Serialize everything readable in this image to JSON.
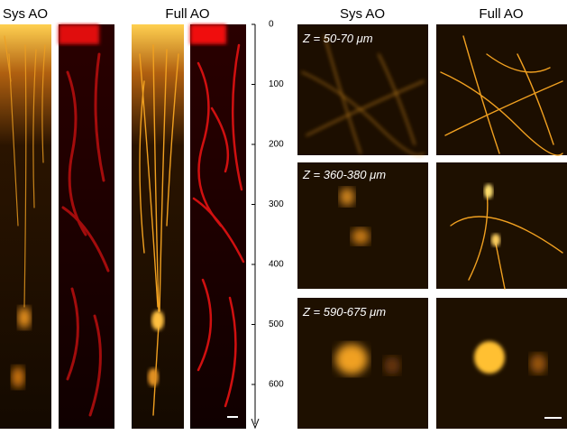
{
  "left": {
    "headers": [
      "Sys AO",
      "Full AO"
    ]
  },
  "depth_axis": {
    "ticks": [
      0,
      100,
      200,
      300,
      400,
      500,
      600
    ]
  },
  "right": {
    "headers": [
      "Sys AO",
      "Full AO"
    ],
    "rows": [
      "Z = 50-70 μm",
      "Z = 360-380 μm",
      "Z = 590-675 μm"
    ]
  }
}
